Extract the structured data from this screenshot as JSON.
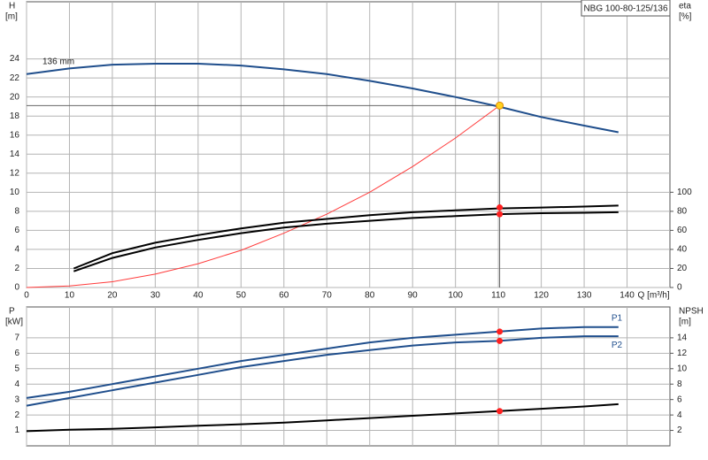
{
  "chart_data": [
    {
      "type": "line",
      "title": "NBG 100-80-125/136",
      "ylabel": "H",
      "yunit": "[m]",
      "y2label": "eta",
      "y2unit": "[%]",
      "xlabel": "Q [m³/h]",
      "xlim": [
        0,
        150
      ],
      "xticks": [
        0,
        10,
        20,
        30,
        40,
        50,
        60,
        70,
        80,
        90,
        100,
        110,
        120,
        130,
        140
      ],
      "show_xtick_labels": true,
      "ylim": [
        0,
        30
      ],
      "yticks": [
        0,
        2,
        4,
        6,
        8,
        10,
        12,
        14,
        16,
        18,
        20,
        22,
        24
      ],
      "y2lim": [
        0,
        300
      ],
      "y2ticks": [
        0,
        20,
        40,
        60,
        80,
        100
      ],
      "grid": true,
      "series": [
        {
          "name": "136 mm",
          "color": "#1f4e8c",
          "x": [
            0,
            10,
            20,
            30,
            40,
            50,
            60,
            70,
            80,
            90,
            100,
            110,
            120,
            130,
            138
          ],
          "values": [
            22.4,
            23.0,
            23.4,
            23.5,
            23.5,
            23.3,
            22.9,
            22.4,
            21.7,
            20.9,
            20.0,
            19.0,
            17.9,
            17.0,
            16.3
          ]
        },
        {
          "color": "#ff3b3b",
          "x": [
            0,
            10,
            20,
            30,
            40,
            50,
            60,
            70,
            80,
            90,
            100,
            110
          ],
          "values": [
            0,
            0.16,
            0.6,
            1.4,
            2.5,
            3.9,
            5.7,
            7.7,
            10.0,
            12.7,
            15.7,
            19.0
          ]
        },
        {
          "color": "#000000",
          "axis": "y2",
          "x": [
            11,
            20,
            30,
            40,
            50,
            60,
            70,
            80,
            90,
            100,
            110,
            120,
            130,
            138
          ],
          "values": [
            20,
            36,
            47,
            55,
            62,
            68,
            72,
            76,
            79,
            81,
            83,
            84,
            85,
            86
          ]
        },
        {
          "color": "#000000",
          "axis": "y2",
          "x": [
            11,
            20,
            30,
            40,
            50,
            60,
            70,
            80,
            90,
            100,
            110,
            120,
            130,
            138
          ],
          "values": [
            17,
            31,
            42,
            50,
            57,
            63,
            67,
            70,
            73,
            75,
            77,
            78,
            78.5,
            79
          ]
        }
      ],
      "operating_point": {
        "x": 110.3,
        "y": 19.1,
        "color": "#ffd21f"
      },
      "points": [
        {
          "x": 110.3,
          "y": 84,
          "axis": "y2",
          "color": "#ff2020"
        },
        {
          "x": 110.3,
          "y": 77,
          "axis": "y2",
          "color": "#ff2020"
        }
      ]
    },
    {
      "type": "line",
      "ylabel": "P",
      "yunit": "[kW]",
      "y2label": "NPSH",
      "y2unit": "[m]",
      "xlim": [
        0,
        150
      ],
      "xticks": [
        0,
        10,
        20,
        30,
        40,
        50,
        60,
        70,
        80,
        90,
        100,
        110,
        120,
        130,
        140
      ],
      "show_xtick_labels": false,
      "ylim": [
        0,
        9
      ],
      "yticks": [
        1,
        2,
        3,
        4,
        5,
        6,
        7
      ],
      "y2lim": [
        0,
        18
      ],
      "y2ticks": [
        2,
        4,
        6,
        8,
        10,
        12,
        14
      ],
      "grid": true,
      "series": [
        {
          "name": "P1",
          "color": "#1f4e8c",
          "x": [
            0,
            10,
            20,
            30,
            40,
            50,
            60,
            70,
            80,
            90,
            100,
            110,
            120,
            130,
            138
          ],
          "values": [
            3.1,
            3.5,
            4.0,
            4.5,
            5.0,
            5.5,
            5.9,
            6.3,
            6.7,
            7.0,
            7.2,
            7.4,
            7.6,
            7.7,
            7.7
          ]
        },
        {
          "name": "P2",
          "color": "#1f4e8c",
          "x": [
            0,
            10,
            20,
            30,
            40,
            50,
            60,
            70,
            80,
            90,
            100,
            110,
            120,
            130,
            138
          ],
          "values": [
            2.6,
            3.1,
            3.6,
            4.1,
            4.6,
            5.1,
            5.5,
            5.9,
            6.2,
            6.5,
            6.7,
            6.8,
            7.0,
            7.1,
            7.1
          ]
        },
        {
          "color": "#000000",
          "axis": "y2",
          "x": [
            0,
            10,
            20,
            30,
            40,
            50,
            60,
            70,
            80,
            90,
            100,
            110,
            120,
            130,
            138
          ],
          "values": [
            1.9,
            2.1,
            2.2,
            2.4,
            2.6,
            2.8,
            3.0,
            3.3,
            3.6,
            3.9,
            4.2,
            4.5,
            4.8,
            5.1,
            5.4
          ]
        }
      ],
      "points": [
        {
          "x": 110.3,
          "y": 7.4,
          "color": "#ff2020"
        },
        {
          "x": 110.3,
          "y": 6.8,
          "color": "#ff2020"
        },
        {
          "x": 110.3,
          "y": 4.5,
          "axis": "y2",
          "color": "#ff2020"
        }
      ]
    }
  ]
}
